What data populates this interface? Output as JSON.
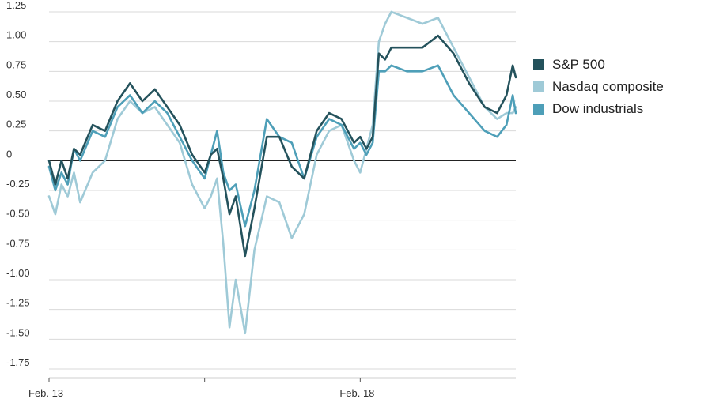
{
  "chart_data": {
    "type": "line",
    "title": "",
    "xlabel": "",
    "ylabel": "",
    "x_tick_labels": [
      "Feb. 13",
      "Feb. 18"
    ],
    "y_ticks": [
      1.25,
      1.0,
      0.75,
      0.5,
      0.25,
      0,
      -0.25,
      -0.5,
      -0.75,
      -1.0,
      -1.25,
      -1.5,
      -1.75
    ],
    "y_tick_labels": [
      "1.25",
      "1.00",
      "0.75",
      "0.50",
      "0.25",
      "0",
      "-0.25",
      "-0.50",
      "-0.75",
      "-1.00",
      "-1.25",
      "-1.50",
      "-1.75"
    ],
    "ylim": [
      -1.75,
      1.25
    ],
    "xlim": [
      0,
      15
    ],
    "grid": true,
    "legend_position": "right",
    "series": [
      {
        "name": "S&P 500",
        "color": "#24525c",
        "x": [
          0,
          0.2,
          0.4,
          0.6,
          0.8,
          1.0,
          1.4,
          1.8,
          2.2,
          2.6,
          3.0,
          3.4,
          3.8,
          4.2,
          4.6,
          5.0,
          5.2,
          5.4,
          5.6,
          5.8,
          6.0,
          6.3,
          6.6,
          7.0,
          7.4,
          7.8,
          8.2,
          8.6,
          9.0,
          9.4,
          9.8,
          10.0,
          10.2,
          10.4,
          10.6,
          10.8,
          11.0,
          11.5,
          12.0,
          12.5,
          13.0,
          13.5,
          14.0,
          14.4,
          14.7,
          14.9,
          15.0
        ],
        "values": [
          0.0,
          -0.2,
          0.0,
          -0.15,
          0.1,
          0.05,
          0.3,
          0.25,
          0.5,
          0.65,
          0.5,
          0.6,
          0.45,
          0.3,
          0.05,
          -0.1,
          0.05,
          0.1,
          -0.15,
          -0.45,
          -0.3,
          -0.8,
          -0.4,
          0.2,
          0.2,
          -0.05,
          -0.15,
          0.25,
          0.4,
          0.35,
          0.15,
          0.2,
          0.1,
          0.2,
          0.9,
          0.85,
          0.95,
          0.95,
          0.95,
          1.05,
          0.9,
          0.65,
          0.45,
          0.4,
          0.55,
          0.8,
          0.7
        ]
      },
      {
        "name": "Nasdaq composite",
        "color": "#9fcad7",
        "x": [
          0,
          0.2,
          0.4,
          0.6,
          0.8,
          1.0,
          1.4,
          1.8,
          2.2,
          2.6,
          3.0,
          3.4,
          3.8,
          4.2,
          4.6,
          5.0,
          5.2,
          5.4,
          5.6,
          5.8,
          6.0,
          6.3,
          6.6,
          7.0,
          7.4,
          7.8,
          8.2,
          8.6,
          9.0,
          9.4,
          9.8,
          10.0,
          10.2,
          10.4,
          10.6,
          10.8,
          11.0,
          11.5,
          12.0,
          12.5,
          13.0,
          13.5,
          14.0,
          14.4,
          14.7,
          14.9,
          15.0
        ],
        "values": [
          -0.3,
          -0.45,
          -0.2,
          -0.3,
          -0.1,
          -0.35,
          -0.1,
          0.0,
          0.35,
          0.5,
          0.4,
          0.45,
          0.3,
          0.15,
          -0.2,
          -0.4,
          -0.3,
          -0.15,
          -0.7,
          -1.4,
          -1.0,
          -1.45,
          -0.75,
          -0.3,
          -0.35,
          -0.65,
          -0.45,
          0.05,
          0.25,
          0.3,
          0.0,
          -0.1,
          0.1,
          0.3,
          1.0,
          1.15,
          1.25,
          1.2,
          1.15,
          1.2,
          0.95,
          0.7,
          0.45,
          0.35,
          0.4,
          0.4,
          0.45
        ]
      },
      {
        "name": "Dow industrials",
        "color": "#4e9fb8",
        "x": [
          0,
          0.2,
          0.4,
          0.6,
          0.8,
          1.0,
          1.4,
          1.8,
          2.2,
          2.6,
          3.0,
          3.4,
          3.8,
          4.2,
          4.6,
          5.0,
          5.2,
          5.4,
          5.6,
          5.8,
          6.0,
          6.3,
          6.6,
          7.0,
          7.4,
          7.8,
          8.2,
          8.6,
          9.0,
          9.4,
          9.8,
          10.0,
          10.2,
          10.4,
          10.6,
          10.8,
          11.0,
          11.5,
          12.0,
          12.5,
          13.0,
          13.5,
          14.0,
          14.4,
          14.7,
          14.9,
          15.0
        ],
        "values": [
          -0.05,
          -0.25,
          -0.1,
          -0.2,
          0.1,
          0.0,
          0.25,
          0.2,
          0.45,
          0.55,
          0.4,
          0.5,
          0.4,
          0.2,
          0.0,
          -0.15,
          0.05,
          0.25,
          -0.1,
          -0.25,
          -0.2,
          -0.55,
          -0.25,
          0.35,
          0.2,
          0.15,
          -0.15,
          0.2,
          0.35,
          0.3,
          0.1,
          0.15,
          0.05,
          0.15,
          0.75,
          0.75,
          0.8,
          0.75,
          0.75,
          0.8,
          0.55,
          0.4,
          0.25,
          0.2,
          0.3,
          0.55,
          0.4
        ]
      }
    ]
  }
}
